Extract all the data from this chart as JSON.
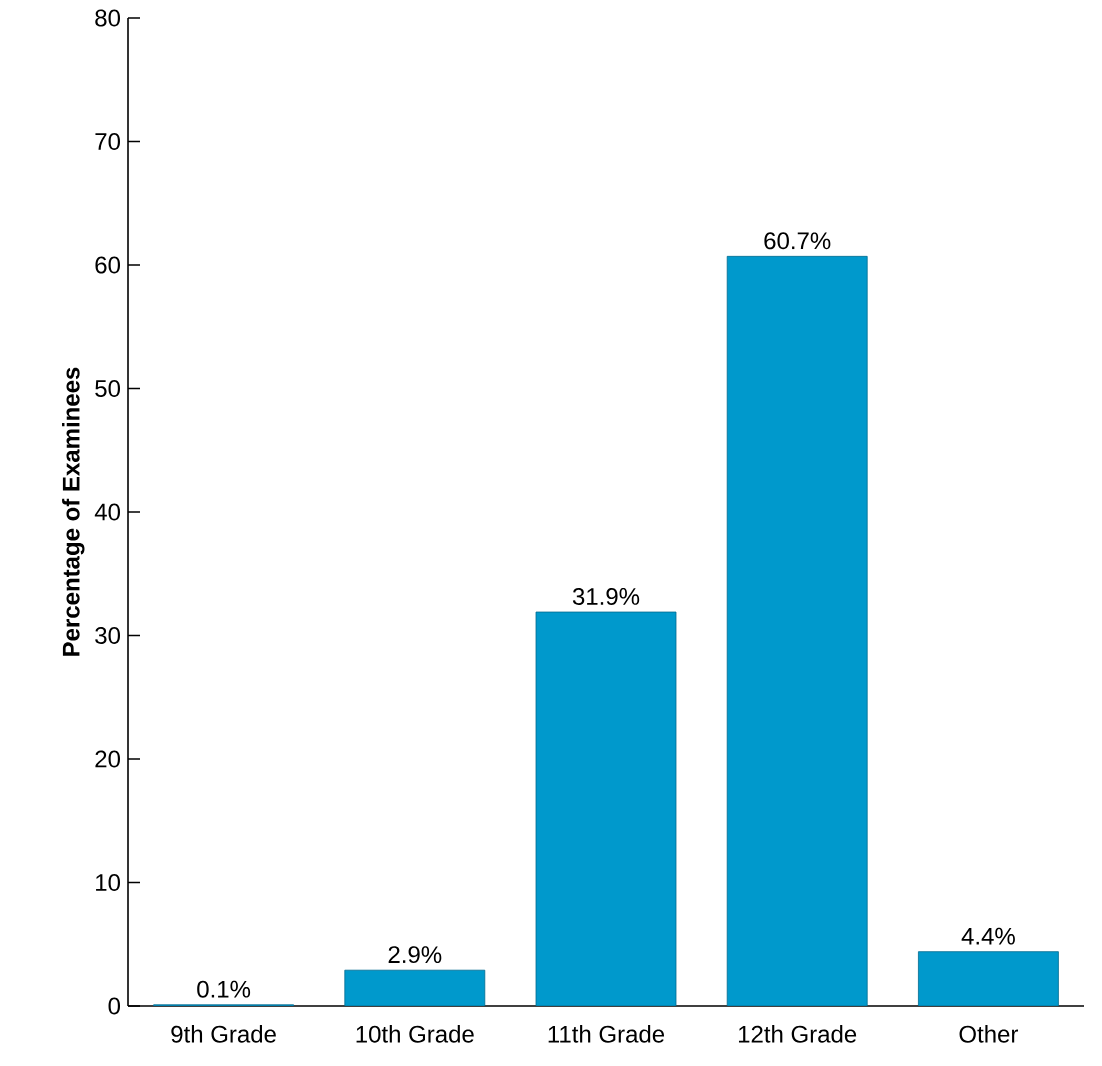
{
  "chart_data": {
    "type": "bar",
    "ylabel": "Percentage of Examinees",
    "categories": [
      "9th Grade",
      "10th Grade",
      "11th Grade",
      "12th Grade",
      "Other"
    ],
    "values": [
      0.1,
      2.9,
      31.9,
      60.7,
      4.4
    ],
    "value_labels": [
      "0.1%",
      "2.9%",
      "31.9%",
      "60.7%",
      "4.4%"
    ],
    "color": "#0099cc",
    "ylim": [
      0,
      80
    ],
    "yticks": [
      0,
      10,
      20,
      30,
      40,
      50,
      60,
      70,
      80
    ],
    "grid": false
  }
}
